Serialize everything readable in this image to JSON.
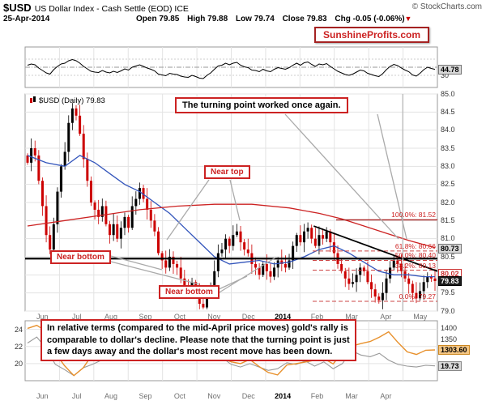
{
  "header": {
    "symbol": "$USD",
    "title": "US Dollar Index - Cash Settle (EOD) ICE",
    "source": "© StockCharts.com",
    "date": "25-Apr-2014",
    "ohlc": [
      {
        "label": "Open",
        "value": "79.85"
      },
      {
        "label": "High",
        "value": "79.88"
      },
      {
        "label": "Low",
        "value": "79.74"
      },
      {
        "label": "Close",
        "value": "79.83"
      },
      {
        "label": "Chg",
        "value": "-0.05 (-0.06%)"
      }
    ],
    "chg_arrow": "▼",
    "watermark": "SunshineProfits.com"
  },
  "main_label": {
    "text": "$USD (Daily) 79.83"
  },
  "annotations": {
    "turning_point": "The turning point worked once again.",
    "near_top": "Near top",
    "near_bottom_1": "Near bottom",
    "near_bottom_2": "Near bottom",
    "bottom_note": "In relative terms (compared to the mid-April price moves) gold's rally is comparable to dollar's decline. Please note that the turning point is just a few days away and the dollar's most recent move has been down."
  },
  "value_boxes": {
    "momentum": "44.78",
    "ma200": "80.73",
    "ma50": "80.02",
    "close": "79.83",
    "gold": "1303.60",
    "silver": "19.73"
  },
  "colors": {
    "candle_up": "#000000",
    "candle_down": "#cc0000",
    "ma50": "#3355bb",
    "ma200": "#cc2222",
    "gold": "#e8912d",
    "silver": "#999999",
    "grid": "#e3e3e3",
    "annotation_red": "#cc2222"
  },
  "chart_data": [
    {
      "panel": "momentum",
      "type": "line",
      "ylim": [
        0,
        100
      ],
      "levels": [
        70,
        50,
        30
      ],
      "tick_labels": [
        "30"
      ],
      "last_value": 44.78,
      "values": [
        55,
        58,
        56,
        48,
        42,
        36,
        33,
        44,
        52,
        58,
        60,
        66,
        69,
        66,
        60,
        52,
        46,
        40,
        38,
        37,
        42,
        38,
        36,
        40,
        37,
        41,
        46,
        43,
        50,
        53,
        56,
        52,
        48,
        45,
        41,
        33,
        31,
        29,
        35,
        33,
        32,
        28,
        26,
        25,
        30,
        27,
        23,
        22,
        30,
        36,
        45,
        53,
        55,
        60,
        56,
        60,
        62,
        55,
        51,
        49,
        43,
        42,
        39,
        45,
        41,
        39,
        45,
        49,
        47,
        45,
        49,
        55,
        60,
        55,
        61,
        63,
        57,
        52,
        58,
        56,
        59,
        52,
        46,
        40,
        36,
        32,
        30,
        33,
        38,
        43,
        41,
        35,
        32,
        29,
        27,
        34,
        44,
        52,
        57,
        54,
        48,
        43,
        39,
        31,
        28,
        35,
        44,
        50,
        47,
        44.78
      ]
    },
    {
      "panel": "price",
      "type": "candlestick",
      "ylim": [
        79.0,
        85.0
      ],
      "tick_labels": [
        "85.0",
        "84.5",
        "84.0",
        "83.5",
        "83.0",
        "82.5",
        "82.0",
        "81.5",
        "81.0",
        "80.5",
        "80.0",
        "79.5",
        "79.0"
      ],
      "x_labels": [
        "Jun",
        "Jul",
        "Aug",
        "Sep",
        "Oct",
        "Nov",
        "Dec",
        "2014",
        "Feb",
        "Mar",
        "Apr",
        "May"
      ],
      "closes": [
        83.1,
        83.5,
        83.3,
        82.6,
        81.9,
        81.1,
        80.7,
        81.4,
        82.3,
        83.0,
        83.4,
        84.2,
        84.6,
        84.4,
        83.9,
        83.2,
        82.6,
        82.0,
        81.8,
        81.6,
        81.9,
        81.4,
        81.1,
        81.4,
        81.0,
        81.3,
        81.6,
        81.3,
        81.9,
        82.1,
        82.4,
        82.1,
        81.8,
        81.5,
        81.2,
        80.6,
        80.4,
        80.2,
        80.5,
        80.3,
        80.2,
        79.9,
        79.7,
        79.6,
        79.8,
        79.5,
        79.2,
        79.1,
        79.4,
        79.7,
        80.1,
        80.6,
        80.7,
        81.0,
        80.8,
        81.1,
        81.2,
        80.9,
        80.7,
        80.6,
        80.3,
        80.2,
        80.0,
        80.3,
        80.1,
        79.95,
        80.2,
        80.4,
        80.3,
        80.2,
        80.4,
        80.8,
        81.1,
        80.9,
        81.2,
        81.3,
        81.0,
        80.8,
        81.1,
        81.0,
        81.2,
        80.9,
        80.6,
        80.3,
        80.1,
        79.9,
        79.75,
        79.8,
        80.0,
        80.2,
        80.1,
        79.8,
        79.6,
        79.4,
        79.3,
        79.5,
        79.9,
        80.2,
        80.4,
        80.3,
        80.1,
        79.9,
        79.75,
        79.5,
        79.35,
        79.55,
        79.8,
        79.95,
        79.9,
        79.83
      ],
      "ma50_points": [
        [
          0,
          83.3
        ],
        [
          5,
          83.1
        ],
        [
          10,
          83.0
        ],
        [
          14,
          83.3
        ],
        [
          18,
          83.1
        ],
        [
          22,
          82.8
        ],
        [
          26,
          82.5
        ],
        [
          30,
          82.3
        ],
        [
          34,
          82.0
        ],
        [
          38,
          81.7
        ],
        [
          42,
          81.3
        ],
        [
          46,
          80.9
        ],
        [
          50,
          80.5
        ],
        [
          54,
          80.3
        ],
        [
          58,
          80.35
        ],
        [
          62,
          80.4
        ],
        [
          66,
          80.3
        ],
        [
          70,
          80.35
        ],
        [
          74,
          80.5
        ],
        [
          78,
          80.7
        ],
        [
          82,
          80.8
        ],
        [
          86,
          80.6
        ],
        [
          90,
          80.35
        ],
        [
          94,
          80.1
        ],
        [
          98,
          80.0
        ],
        [
          102,
          80.0
        ],
        [
          106,
          79.95
        ],
        [
          109,
          79.95
        ]
      ],
      "ma200_points": [
        [
          0,
          81.35
        ],
        [
          10,
          81.5
        ],
        [
          20,
          81.65
        ],
        [
          30,
          81.8
        ],
        [
          40,
          81.9
        ],
        [
          50,
          81.95
        ],
        [
          60,
          81.95
        ],
        [
          70,
          81.85
        ],
        [
          78,
          81.7
        ],
        [
          84,
          81.55
        ],
        [
          90,
          81.35
        ],
        [
          96,
          81.15
        ],
        [
          102,
          80.95
        ],
        [
          109,
          80.75
        ]
      ],
      "ma50_last": 80.02,
      "ma200_last": 80.73,
      "last_close": 79.83,
      "fib_levels": [
        {
          "label": "100.0%: 81.52",
          "value": 81.52,
          "style": "solid"
        },
        {
          "label": "61.8%: 80.66",
          "value": 80.66,
          "style": "dashed"
        },
        {
          "label": "50.0%: 80.40",
          "value": 80.4,
          "style": "dashed"
        },
        {
          "label": "38.2%: 80.13",
          "value": 80.13,
          "style": "dashed"
        },
        {
          "label": "0.0%: 79.27",
          "value": 79.27,
          "style": "dashed"
        }
      ],
      "horizontal_line": 80.45,
      "trendline": {
        "from": [
          0.7,
          81.35
        ],
        "to": [
          1.0,
          80.1
        ]
      },
      "turning_point_x": 0.916
    },
    {
      "panel": "comparison",
      "type": "line",
      "x_labels": [
        "Jun",
        "Jul",
        "Aug",
        "Sep",
        "Oct",
        "Nov",
        "Dec",
        "2014",
        "Feb",
        "Mar",
        "Apr"
      ],
      "left_ylim": [
        18,
        25
      ],
      "right_ylim": [
        1170,
        1430
      ],
      "left_ticks": [
        "24",
        "22",
        "20"
      ],
      "right_ticks": [
        "1400",
        "1350"
      ],
      "series": [
        {
          "name": "gold",
          "axis": "right",
          "last_value": 1303.6,
          "values": [
            1397,
            1410,
            1385,
            1290,
            1235,
            1192,
            1225,
            1283,
            1313,
            1328,
            1308,
            1338,
            1372,
            1391,
            1362,
            1327,
            1316,
            1288,
            1324,
            1342,
            1322,
            1268,
            1252,
            1244,
            1262,
            1232,
            1206,
            1195,
            1238,
            1244,
            1251,
            1259,
            1266,
            1243,
            1292,
            1320,
            1331,
            1340,
            1359,
            1382,
            1336,
            1295,
            1284,
            1302,
            1303.6
          ]
        },
        {
          "name": "silver",
          "axis": "left",
          "last_value": 19.73,
          "values": [
            22.4,
            23.1,
            21.8,
            19.9,
            19.3,
            18.6,
            19.5,
            19.9,
            20.4,
            21.9,
            23.2,
            24.4,
            23.6,
            23.2,
            22.5,
            21.6,
            21.8,
            21.3,
            22.5,
            22.7,
            21.9,
            20.7,
            19.9,
            19.6,
            20.0,
            19.6,
            19.2,
            19.4,
            20.1,
            19.9,
            20.3,
            19.7,
            20.2,
            19.4,
            20.0,
            21.5,
            21.0,
            20.8,
            21.2,
            20.4,
            19.9,
            19.7,
            19.6,
            19.8,
            19.73
          ]
        }
      ]
    }
  ]
}
